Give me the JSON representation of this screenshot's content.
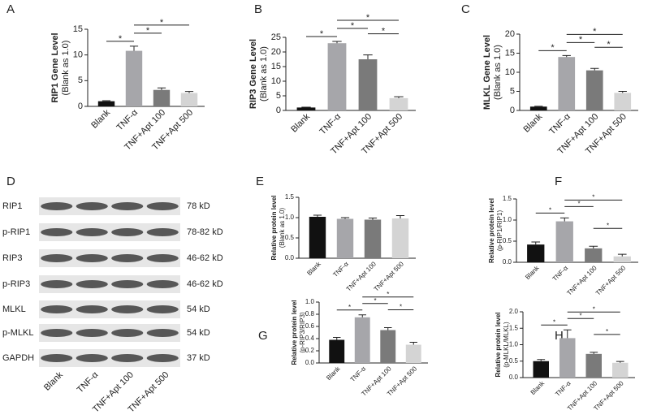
{
  "chart_data": [
    {
      "type": "bar",
      "panel": "A",
      "ylabel": [
        "RIP1 Gene Level",
        "(Blank as 1.0)"
      ],
      "categories": [
        "Blank",
        "TNF-α",
        "TNF+Apt 100",
        "TNF+Apt 500"
      ],
      "values": [
        1.0,
        10.8,
        3.2,
        2.6
      ],
      "errors": [
        0.1,
        0.9,
        0.4,
        0.3
      ],
      "colors": [
        "#111111",
        "#a6a6aa",
        "#7a7a7a",
        "#d4d4d4"
      ],
      "ylim": [
        0,
        15
      ],
      "yticks": [
        0,
        5,
        10,
        15
      ],
      "comparisons": [
        {
          "pair": [
            "Blank",
            "TNF-α"
          ],
          "label": "*"
        },
        {
          "pair": [
            "TNF-α",
            "TNF+Apt 100"
          ],
          "label": "*"
        },
        {
          "pair": [
            "TNF-α",
            "TNF+Apt 500"
          ],
          "label": "*"
        }
      ]
    },
    {
      "type": "bar",
      "panel": "B",
      "ylabel": [
        "RIP3 Gene Level",
        "(Blank as 1.0)"
      ],
      "categories": [
        "Blank",
        "TNF-α",
        "TNF+Apt 100",
        "TNF+Apt 500"
      ],
      "values": [
        1.0,
        23.0,
        17.5,
        4.2
      ],
      "errors": [
        0.1,
        0.6,
        1.5,
        0.5
      ],
      "colors": [
        "#111111",
        "#a6a6aa",
        "#7a7a7a",
        "#d4d4d4"
      ],
      "ylim": [
        0,
        25
      ],
      "yticks": [
        0,
        5,
        10,
        15,
        20,
        25
      ],
      "comparisons": [
        {
          "pair": [
            "Blank",
            "TNF-α"
          ],
          "label": "*"
        },
        {
          "pair": [
            "TNF-α",
            "TNF+Apt 100"
          ],
          "label": "*"
        },
        {
          "pair": [
            "TNF-α",
            "TNF+Apt 500"
          ],
          "label": "*"
        },
        {
          "pair": [
            "TNF+Apt 100",
            "TNF+Apt 500"
          ],
          "label": "*"
        }
      ]
    },
    {
      "type": "bar",
      "panel": "C",
      "ylabel": [
        "MLKL Gene Level",
        "(Blank as 1.0)"
      ],
      "categories": [
        "Blank",
        "TNF-α",
        "TNF+Apt 100",
        "TNF+Apt 500"
      ],
      "values": [
        1.0,
        14.0,
        10.5,
        4.6
      ],
      "errors": [
        0.1,
        0.4,
        0.5,
        0.4
      ],
      "colors": [
        "#111111",
        "#a6a6aa",
        "#7a7a7a",
        "#d4d4d4"
      ],
      "ylim": [
        0,
        20
      ],
      "yticks": [
        0,
        5,
        10,
        15,
        20
      ],
      "comparisons": [
        {
          "pair": [
            "Blank",
            "TNF-α"
          ],
          "label": "*"
        },
        {
          "pair": [
            "TNF-α",
            "TNF+Apt 100"
          ],
          "label": "*"
        },
        {
          "pair": [
            "TNF-α",
            "TNF+Apt 500"
          ],
          "label": "*"
        },
        {
          "pair": [
            "TNF+Apt 100",
            "TNF+Apt 500"
          ],
          "label": "*"
        }
      ]
    },
    {
      "type": "bar",
      "panel": "E",
      "ylabel": [
        "Relative protein level",
        "(Blank as 1.0)"
      ],
      "categories": [
        "Blank",
        "TNF-α",
        "TNF+Apt 100",
        "TNF+Apt 500"
      ],
      "values": [
        1.02,
        0.97,
        0.95,
        0.98
      ],
      "errors": [
        0.04,
        0.03,
        0.04,
        0.07
      ],
      "colors": [
        "#111111",
        "#a6a6aa",
        "#7a7a7a",
        "#d4d4d4"
      ],
      "ylim": [
        0,
        1.5
      ],
      "yticks": [
        {
          "value": 0,
          "label": "0.0"
        },
        0.5,
        {
          "value": 1,
          "label": "1.0"
        },
        1.5
      ],
      "comparisons": []
    },
    {
      "type": "bar",
      "panel": "F",
      "ylabel": [
        "Relative protein level",
        "(p-RIP1/RIP1)"
      ],
      "categories": [
        "Blank",
        "TNF-α",
        "TNF+Apt 100",
        "TNF+Apt 500"
      ],
      "values": [
        0.42,
        0.97,
        0.33,
        0.14
      ],
      "errors": [
        0.06,
        0.08,
        0.05,
        0.05
      ],
      "colors": [
        "#111111",
        "#a6a6aa",
        "#7a7a7a",
        "#d4d4d4"
      ],
      "ylim": [
        0,
        1.5
      ],
      "yticks": [
        {
          "value": 0,
          "label": "0.0"
        },
        0.5,
        {
          "value": 1,
          "label": "1.0"
        },
        1.5
      ],
      "comparisons": [
        {
          "pair": [
            "Blank",
            "TNF-α"
          ],
          "label": "*"
        },
        {
          "pair": [
            "TNF-α",
            "TNF+Apt 100"
          ],
          "label": "*"
        },
        {
          "pair": [
            "TNF-α",
            "TNF+Apt 500"
          ],
          "label": "*"
        },
        {
          "pair": [
            "TNF+Apt 100",
            "TNF+Apt 500"
          ],
          "label": "*"
        }
      ]
    },
    {
      "type": "bar",
      "panel": "G",
      "ylabel": [
        "Relative protein level",
        "(p-RIP3/RIP3)"
      ],
      "categories": [
        "Blank",
        "TNF-α",
        "TNF+Apt 100",
        "TNF+Apt 500"
      ],
      "values": [
        0.38,
        0.75,
        0.54,
        0.3
      ],
      "errors": [
        0.04,
        0.04,
        0.04,
        0.04
      ],
      "colors": [
        "#111111",
        "#a6a6aa",
        "#7a7a7a",
        "#d4d4d4"
      ],
      "ylim": [
        0,
        1.0
      ],
      "yticks": [
        {
          "value": 0,
          "label": "0.0"
        },
        0.2,
        0.4,
        0.6,
        0.8,
        {
          "value": 1,
          "label": "1.0"
        }
      ],
      "comparisons": [
        {
          "pair": [
            "Blank",
            "TNF-α"
          ],
          "label": "*"
        },
        {
          "pair": [
            "TNF-α",
            "TNF+Apt 100"
          ],
          "label": "*"
        },
        {
          "pair": [
            "TNF-α",
            "TNF+Apt 500"
          ],
          "label": "*"
        },
        {
          "pair": [
            "TNF+Apt 100",
            "TNF+Apt 500"
          ],
          "label": "*"
        }
      ]
    },
    {
      "type": "bar",
      "panel": "H",
      "ylabel": [
        "Relative protein level",
        "(p-MLKL/MLKL)"
      ],
      "categories": [
        "Blank",
        "TNF-α",
        "TNF+Apt 100",
        "TNF+Apt 500"
      ],
      "values": [
        0.5,
        1.2,
        0.72,
        0.45
      ],
      "errors": [
        0.05,
        0.25,
        0.05,
        0.04
      ],
      "colors": [
        "#111111",
        "#a6a6aa",
        "#7a7a7a",
        "#d4d4d4"
      ],
      "ylim": [
        0,
        2.0
      ],
      "yticks": [
        {
          "value": 0,
          "label": "0.0"
        },
        0.5,
        {
          "value": 1,
          "label": "1.0"
        },
        1.5,
        {
          "value": 2,
          "label": "2.0"
        }
      ],
      "comparisons": [
        {
          "pair": [
            "Blank",
            "TNF-α"
          ],
          "label": "*"
        },
        {
          "pair": [
            "TNF-α",
            "TNF+Apt 100"
          ],
          "label": "*"
        },
        {
          "pair": [
            "TNF-α",
            "TNF+Apt 500"
          ],
          "label": "*"
        },
        {
          "pair": [
            "TNF+Apt 100",
            "TNF+Apt 500"
          ],
          "label": "*"
        }
      ]
    }
  ],
  "blot": {
    "panel": "D",
    "rows": [
      {
        "label": "RIP1",
        "size": "78 kD"
      },
      {
        "label": "p-RIP1",
        "size": "78-82 kD"
      },
      {
        "label": "RIP3",
        "size": "46-62 kD"
      },
      {
        "label": "p-RIP3",
        "size": "46-62 kD"
      },
      {
        "label": "MLKL",
        "size": "54 kD"
      },
      {
        "label": "p-MLKL",
        "size": "54 kD"
      },
      {
        "label": "GAPDH",
        "size": "37 kD"
      }
    ],
    "lanes": [
      "Blank",
      "TNF-α",
      "TNF+Apt 100",
      "TNF+Apt 500"
    ]
  }
}
